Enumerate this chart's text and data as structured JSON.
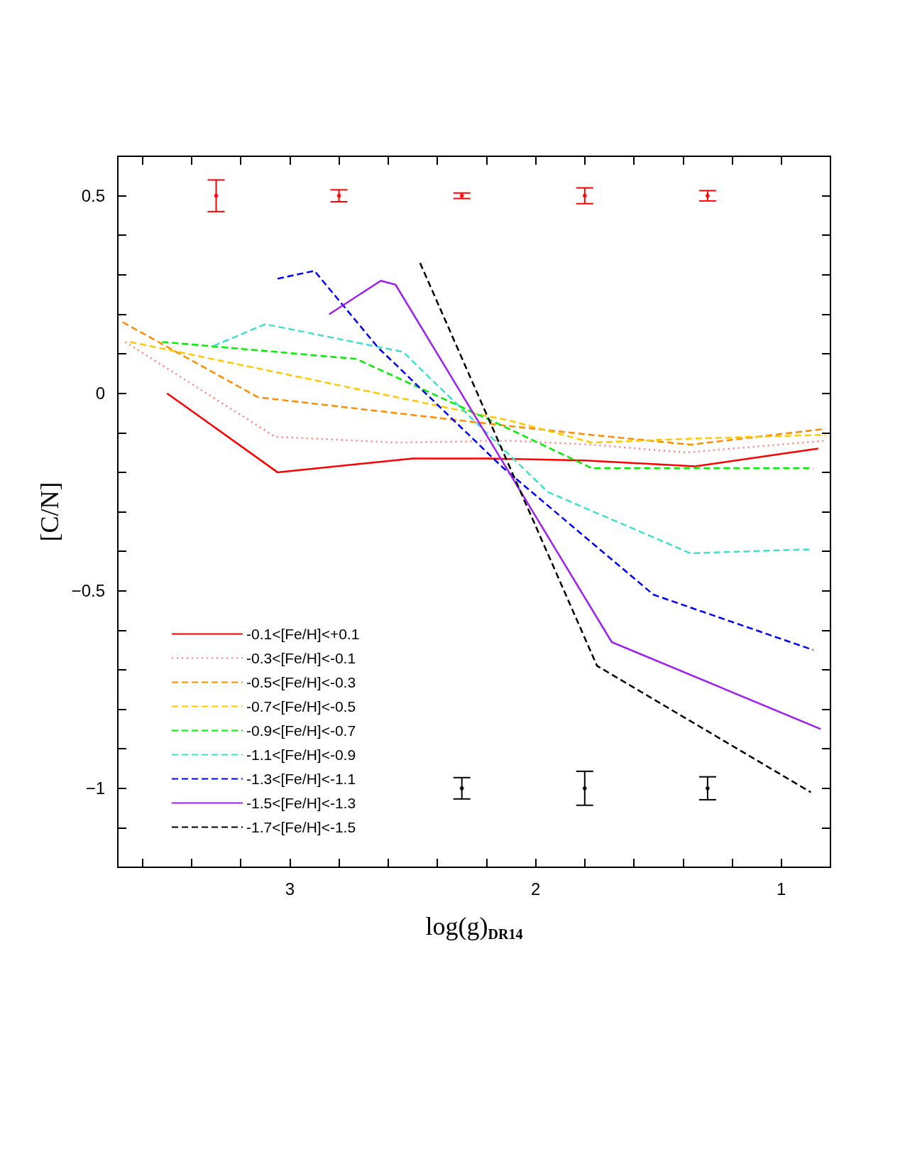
{
  "chart_data": {
    "type": "line",
    "xlabel": "log(g)$_{DR14}$",
    "ylabel": "[C/N]",
    "xlim": [
      3.7,
      0.8
    ],
    "ylim": [
      -1.2,
      0.6
    ],
    "xticks": [
      {
        "value": 3.6,
        "label": null
      },
      {
        "value": 3.4,
        "label": null
      },
      {
        "value": 3.2,
        "label": null
      },
      3,
      {
        "value": 2.8,
        "label": null
      },
      {
        "value": 2.6,
        "label": null
      },
      {
        "value": 2.4,
        "label": null
      },
      {
        "value": 2.2,
        "label": null
      },
      2,
      {
        "value": 1.8,
        "label": null
      },
      {
        "value": 1.6,
        "label": null
      },
      {
        "value": 1.4,
        "label": null
      },
      {
        "value": 1.2,
        "label": null
      },
      1
    ],
    "yticks": [
      {
        "value": -1.2,
        "label": null
      },
      {
        "value": -1.1,
        "label": null
      },
      {
        "value": -1,
        "label": "−1"
      },
      {
        "value": -0.9,
        "label": null
      },
      {
        "value": -0.8,
        "label": null
      },
      {
        "value": -0.7,
        "label": null
      },
      {
        "value": -0.6,
        "label": null
      },
      {
        "value": -0.5,
        "label": "−0.5"
      },
      {
        "value": -0.4,
        "label": null
      },
      {
        "value": -0.3,
        "label": null
      },
      {
        "value": -0.2,
        "label": null
      },
      {
        "value": -0.1,
        "label": null
      },
      0,
      {
        "value": 0.1,
        "label": null
      },
      {
        "value": 0.2,
        "label": null
      },
      {
        "value": 0.3,
        "label": null
      },
      {
        "value": 0.4,
        "label": null
      },
      0.5,
      {
        "value": 0.6,
        "label": null
      }
    ],
    "grid": false,
    "legend": "bottom left",
    "marker": "none",
    "series": [
      {
        "name": "-0.1<[Fe/H]<+0.1",
        "color": "#ff0000",
        "line_style": "solid",
        "x": [
          3.5,
          3.05,
          2.5,
          2.2,
          1.8,
          1.35,
          0.85
        ],
        "values": [
          0.0,
          -0.2,
          -0.165,
          -0.165,
          -0.17,
          -0.185,
          -0.14
        ]
      },
      {
        "name": "-0.3<[Fe/H]<-0.1",
        "color": "#ff7f7f",
        "line_style": "dotted",
        "x": [
          3.67,
          3.06,
          2.56,
          2.11,
          1.77,
          1.39,
          0.82
        ],
        "values": [
          0.13,
          -0.11,
          -0.125,
          -0.12,
          -0.13,
          -0.15,
          -0.12
        ]
      },
      {
        "name": "-0.5<[Fe/H]<-0.3",
        "color": "#ff8c00",
        "line_style": "dashed",
        "x": [
          3.68,
          3.13,
          2.15,
          1.78,
          1.37,
          0.82
        ],
        "values": [
          0.18,
          -0.01,
          -0.08,
          -0.105,
          -0.13,
          -0.09
        ]
      },
      {
        "name": "-0.7<[Fe/H]<-0.5",
        "color": "#ffc800",
        "line_style": "dashed",
        "x": [
          3.65,
          2.1,
          1.77,
          1.37,
          0.82
        ],
        "values": [
          0.13,
          -0.07,
          -0.125,
          -0.115,
          -0.105
        ]
      },
      {
        "name": "-0.9<[Fe/H]<-0.7",
        "color": "#00ee00",
        "line_style": "dashed",
        "x": [
          3.52,
          2.73,
          2.16,
          1.77,
          0.87
        ],
        "values": [
          0.13,
          0.087,
          -0.075,
          -0.19,
          -0.19
        ]
      },
      {
        "name": "-1.1<[Fe/H]<-0.9",
        "color": "#40e0d0",
        "line_style": "dashed",
        "x": [
          3.31,
          3.1,
          2.54,
          1.95,
          1.37,
          0.88
        ],
        "values": [
          0.12,
          0.175,
          0.105,
          -0.25,
          -0.405,
          -0.395
        ]
      },
      {
        "name": "-1.3<[Fe/H]<-1.1",
        "color": "#0000ff",
        "line_style": "dashed",
        "x": [
          3.05,
          2.9,
          2.64,
          2.13,
          1.52,
          0.87
        ],
        "values": [
          0.29,
          0.31,
          0.115,
          -0.19,
          -0.51,
          -0.65
        ]
      },
      {
        "name": "-1.5<[Fe/H]<-1.3",
        "color": "#a020f0",
        "line_style": "solid",
        "x": [
          2.84,
          2.63,
          2.57,
          1.69,
          0.84
        ],
        "values": [
          0.2,
          0.285,
          0.275,
          -0.63,
          -0.85
        ]
      },
      {
        "name": "-1.7<[Fe/H]<-1.5",
        "color": "#000000",
        "line_style": "dashed",
        "x": [
          2.47,
          1.75,
          0.88
        ],
        "values": [
          0.33,
          -0.69,
          -1.01
        ]
      },
      {
        "type": "scatter",
        "color": "#ff0000",
        "x": [
          3.3,
          2.8,
          2.3,
          1.8,
          1.3
        ],
        "values": [
          0.5,
          0.5,
          0.5,
          0.5,
          0.5
        ],
        "errors": [
          0.04,
          0.015,
          0.007,
          0.02,
          0.013
        ]
      },
      {
        "type": "scatter",
        "color": "#000000",
        "x": [
          2.3,
          1.8,
          1.3
        ],
        "values": [
          -1,
          -1,
          -1
        ],
        "errors": [
          0.027,
          0.043,
          0.029
        ]
      }
    ]
  }
}
